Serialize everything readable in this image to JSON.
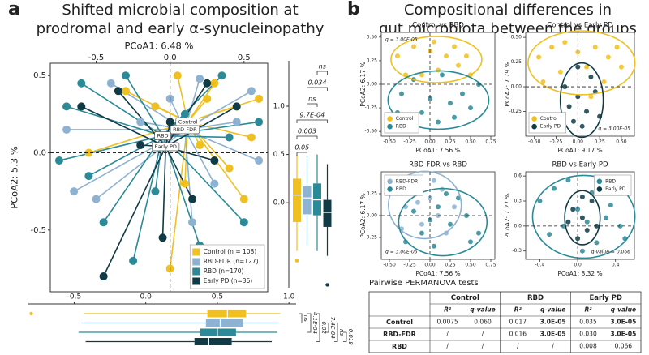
{
  "panels": [
    {
      "label": "a",
      "title": [
        "Shifted microbial composition at",
        "prodromal and early α-synucleinopathy"
      ]
    },
    {
      "label": "b",
      "title": [
        "Compositional differences in",
        "gut microbiota between the groups"
      ]
    }
  ],
  "chart_data": [
    {
      "type": "scatter",
      "spider": true,
      "xlabel": "PCoA1:  6.48 %",
      "ylabel": "PCoA2:  5.3 %",
      "xlim": [
        -0.81,
        0.66
      ],
      "ylim": [
        -0.9,
        0.58
      ],
      "xticks": [
        -0.5,
        {
          "value": 0,
          "label": "0.0"
        },
        0.5
      ],
      "yticks": [
        -0.5,
        {
          "value": 0,
          "label": "0.0"
        },
        0.5
      ],
      "legend": "lower right",
      "series": [
        {
          "name": "Control (n = 108)",
          "centroid_label": "Control",
          "centroid": [
            0.12,
            0.2
          ],
          "color": "#f0c020",
          "x": [
            0.05,
            0.3,
            0.45,
            0.55,
            -0.3,
            0.2,
            0.1,
            0.4,
            -0.1,
            0.6,
            -0.55,
            0.0,
            0.25,
            0.5
          ],
          "y": [
            0.5,
            0.45,
            0.3,
            0.1,
            0.4,
            0.05,
            -0.2,
            -0.1,
            0.3,
            0.35,
            0.0,
            -0.75,
            0.35,
            -0.3
          ]
        },
        {
          "name": "RBD-FDR (n=127)",
          "centroid_label": "RBD-FDR",
          "centroid": [
            0.1,
            0.15
          ],
          "color": "#8db2d2",
          "x": [
            -0.7,
            -0.4,
            0.2,
            0.45,
            -0.5,
            0.3,
            0.6,
            -0.2,
            0.15,
            -0.65,
            0.55,
            0.0
          ],
          "y": [
            0.15,
            0.45,
            0.48,
            0.2,
            -0.3,
            -0.2,
            -0.05,
            0.2,
            -0.45,
            -0.25,
            0.4,
            0.35
          ]
        },
        {
          "name": "RBD (n=170)",
          "centroid_label": "RBD",
          "centroid": [
            -0.05,
            0.11
          ],
          "color": "#2a8a98",
          "x": [
            -0.6,
            -0.3,
            -0.7,
            -0.45,
            -0.25,
            -0.55,
            0.35,
            0.2,
            0.5,
            -0.75,
            0.1,
            0.6,
            -0.1,
            0.4
          ],
          "y": [
            0.45,
            0.5,
            0.3,
            -0.45,
            -0.7,
            -0.15,
            0.5,
            -0.6,
            -0.45,
            -0.05,
            0.25,
            0.2,
            -0.25,
            0.1
          ]
        },
        {
          "name": "Early PD (n=36)",
          "centroid_label": "Early PD",
          "centroid": [
            -0.03,
            0.04
          ],
          "color": "#0e3b46",
          "x": [
            -0.45,
            -0.05,
            0.15,
            -0.35,
            0.25,
            0.45,
            -0.2,
            0.3,
            -0.6,
            0.0
          ],
          "y": [
            -0.8,
            -0.55,
            -0.3,
            0.4,
            0.45,
            0.3,
            0.05,
            -0.05,
            0.3,
            0.2
          ]
        }
      ]
    },
    {
      "type": "box",
      "orientation": "vertical",
      "ylim": [
        -0.88,
        1.47
      ],
      "yticks": [
        {
          "value": 0,
          "label": "0.0"
        },
        0.5,
        {
          "value": 1,
          "label": "1.0"
        }
      ],
      "series": [
        {
          "color": "#f0c020",
          "low": -0.5,
          "q1": -0.2,
          "median": 0.08,
          "q3": 0.25,
          "high": 0.5,
          "outliers": [
            -0.6
          ]
        },
        {
          "color": "#8db2d2",
          "low": -0.45,
          "q1": -0.12,
          "median": 0.05,
          "q3": 0.17,
          "high": 0.48,
          "outliers": []
        },
        {
          "color": "#2a8a98",
          "low": -0.5,
          "q1": -0.13,
          "median": 0.03,
          "q3": 0.2,
          "high": 0.5,
          "outliers": []
        },
        {
          "color": "#0e3b46",
          "low": -0.55,
          "q1": -0.25,
          "median": -0.1,
          "q3": 0.03,
          "high": 0.4,
          "outliers": [
            -0.85
          ]
        }
      ],
      "brackets": [
        "0.05",
        "0.003",
        "9.7E-04",
        "ns",
        "0.034",
        "ns"
      ]
    },
    {
      "type": "box",
      "orientation": "horizontal",
      "xlim": [
        -0.82,
        1.05
      ],
      "xticks": [
        -0.5,
        {
          "value": 0,
          "label": "0.0"
        },
        0.5,
        {
          "value": 1,
          "label": "1.0"
        }
      ],
      "series": [
        {
          "color": "#f0c020",
          "low": -0.43,
          "q1": 0.43,
          "median": 0.57,
          "q3": 0.7,
          "high": 0.94,
          "outliers": [
            -0.8
          ]
        },
        {
          "color": "#8db2d2",
          "low": -0.45,
          "q1": 0.42,
          "median": 0.52,
          "q3": 0.68,
          "high": 0.93,
          "outliers": []
        },
        {
          "color": "#2a8a98",
          "low": -0.47,
          "q1": 0.38,
          "median": 0.5,
          "q3": 0.63,
          "high": 0.92,
          "outliers": []
        },
        {
          "color": "#0e3b46",
          "low": -0.42,
          "q1": 0.34,
          "median": 0.44,
          "q3": 0.6,
          "high": 0.88,
          "outliers": []
        }
      ],
      "brackets": [
        "ns",
        "4.1E-04",
        "0.02",
        "7.4E-04",
        "ns",
        "0.018"
      ]
    },
    {
      "type": "scatter",
      "ellipse": true,
      "title": "Control vs RBD",
      "xlabel": "PCoA1:  7.56 %",
      "ylabel": "PCoA2:  6.17 %",
      "annotation": "q = 3.00E-05",
      "annotation_loc": "upper left",
      "legend": "lower left",
      "xlim": [
        -0.6,
        0.8
      ],
      "ylim": [
        -0.55,
        0.55
      ],
      "xticks": [
        {
          "value": -0.5,
          "label": "-0.50"
        },
        -0.25,
        {
          "value": 0,
          "label": "0.00"
        },
        0.25,
        {
          "value": 0.5,
          "label": "0.50"
        },
        0.75
      ],
      "yticks": [
        {
          "value": -0.5,
          "label": "-0.50"
        },
        -0.25,
        {
          "value": 0,
          "label": "0.00"
        },
        0.25,
        {
          "value": 0.5,
          "label": "0.50"
        }
      ],
      "series": [
        {
          "name": "Control",
          "color": "#f0c020",
          "x": [
            -0.4,
            -0.2,
            0.0,
            0.2,
            0.35,
            0.5,
            -0.1,
            0.1,
            0.3,
            -0.3,
            0.45,
            0.05
          ],
          "y": [
            0.3,
            0.4,
            0.35,
            0.3,
            0.2,
            0.1,
            0.1,
            0.15,
            0.4,
            0.1,
            0.3,
            0.45
          ]
        },
        {
          "name": "RBD",
          "color": "#2a8a98",
          "x": [
            -0.35,
            -0.1,
            0.1,
            0.25,
            0.4,
            0.6,
            -0.2,
            0.0,
            0.3,
            0.15,
            -0.4,
            0.5
          ],
          "y": [
            -0.1,
            -0.3,
            -0.4,
            -0.2,
            -0.1,
            0.0,
            0.05,
            -0.15,
            -0.35,
            0.1,
            -0.3,
            -0.25
          ]
        }
      ]
    },
    {
      "type": "scatter",
      "ellipse": true,
      "title": "Control vs Early PD",
      "xlabel": "PCoA1:  9.17 %",
      "ylabel": "PCoA2:  7.79 %",
      "annotation": "q = 3.00E-05",
      "annotation_loc": "lower right",
      "legend": "lower left",
      "xlim": [
        -0.6,
        0.65
      ],
      "ylim": [
        -0.5,
        0.55
      ],
      "xticks": [
        {
          "value": -0.5,
          "label": "-0.50"
        },
        -0.25,
        {
          "value": 0,
          "label": "0.00"
        },
        0.25,
        {
          "value": 0.5,
          "label": "0.50"
        }
      ],
      "yticks": [
        -0.25,
        {
          "value": 0,
          "label": "0.00"
        },
        0.25,
        {
          "value": 0.5,
          "label": "0.50"
        }
      ],
      "series": [
        {
          "name": "Control",
          "color": "#f0c020",
          "x": [
            -0.45,
            -0.3,
            -0.15,
            0.0,
            0.2,
            0.35,
            0.5,
            -0.2,
            0.1,
            0.3,
            -0.4,
            0.45,
            0.15
          ],
          "y": [
            0.3,
            0.4,
            0.45,
            0.35,
            0.4,
            0.3,
            0.2,
            0.15,
            0.2,
            0.05,
            0.05,
            0.4,
            -0.1
          ]
        },
        {
          "name": "Early PD",
          "color": "#0e3b46",
          "x": [
            -0.15,
            0.0,
            0.1,
            0.05,
            -0.1,
            0.2,
            0.15,
            -0.05,
            0.25,
            0.0
          ],
          "y": [
            0.0,
            -0.1,
            -0.25,
            -0.4,
            -0.2,
            -0.05,
            0.1,
            -0.35,
            -0.3,
            0.2
          ]
        }
      ]
    },
    {
      "type": "scatter",
      "ellipse": true,
      "title": "RBD-FDR vs RBD",
      "xlabel": "PCoA1:  7.56 %",
      "ylabel": "PCoA2:  6.17 %",
      "annotation": "q = 3.00E-05",
      "annotation_loc": "lower left",
      "legend": "upper left",
      "xlim": [
        -0.6,
        0.8
      ],
      "ylim": [
        -0.5,
        0.5
      ],
      "xticks": [
        {
          "value": -0.5,
          "label": "-0.50"
        },
        -0.25,
        {
          "value": 0,
          "label": "0.00"
        },
        0.25,
        {
          "value": 0.5,
          "label": "0.50"
        },
        0.75
      ],
      "yticks": [
        -0.25,
        {
          "value": 0,
          "label": "0.00"
        },
        0.25
      ],
      "series": [
        {
          "name": "RBD-FDR",
          "color": "#8db2d2",
          "x": [
            -0.45,
            -0.3,
            -0.2,
            0.0,
            0.15,
            0.3,
            -0.1,
            0.1,
            -0.35,
            0.2,
            0.05,
            -0.15
          ],
          "y": [
            0.3,
            0.1,
            0.35,
            0.2,
            0.3,
            0.1,
            -0.1,
            0.0,
            -0.15,
            -0.2,
            0.4,
            0.15
          ]
        },
        {
          "name": "RBD",
          "color": "#2a8a98",
          "x": [
            -0.3,
            -0.1,
            0.05,
            0.25,
            0.45,
            0.6,
            0.2,
            0.35,
            -0.2,
            0.1,
            0.5,
            0.0
          ],
          "y": [
            -0.3,
            -0.2,
            -0.35,
            -0.1,
            0.0,
            -0.2,
            0.25,
            0.2,
            0.05,
            0.1,
            -0.3,
            -0.05
          ]
        }
      ]
    },
    {
      "type": "scatter",
      "ellipse": true,
      "title": "RBD vs Early PD",
      "xlabel": "PCoA1:  8.32 %",
      "ylabel": "PCoA2:  7.27 %",
      "annotation": "q-value = 0.066",
      "annotation_loc": "lower right",
      "legend": "upper right",
      "xlim": [
        -0.55,
        0.6
      ],
      "ylim": [
        -0.4,
        0.65
      ],
      "xticks": [
        -0.4,
        {
          "value": 0,
          "label": "0.0"
        },
        0.4
      ],
      "yticks": [
        -0.3,
        {
          "value": 0,
          "label": "0.0"
        },
        0.3,
        0.6
      ],
      "series": [
        {
          "name": "RBD",
          "color": "#2a8a98",
          "x": [
            -0.4,
            -0.25,
            -0.1,
            0.0,
            0.15,
            0.3,
            0.45,
            -0.3,
            0.2,
            0.05,
            0.35,
            -0.15,
            0.1,
            0.5
          ],
          "y": [
            0.3,
            0.45,
            0.55,
            0.2,
            0.4,
            0.1,
            0.0,
            -0.1,
            -0.2,
            -0.3,
            0.25,
            0.0,
            0.05,
            -0.15
          ]
        },
        {
          "name": "Early PD",
          "color": "#0e3b46",
          "x": [
            -0.05,
            0.05,
            0.1,
            0.0,
            0.15,
            -0.1,
            0.2,
            0.05
          ],
          "y": [
            0.2,
            0.1,
            -0.05,
            -0.15,
            0.3,
            0.05,
            0.0,
            0.35
          ]
        }
      ]
    }
  ],
  "table": {
    "title": "Pairwise PERMANOVA tests",
    "groups": [
      "Control",
      "RBD",
      "Early PD"
    ],
    "subheaders": [
      "R²",
      "q-value",
      "R²",
      "q-value",
      "R²",
      "q-value"
    ],
    "rows": [
      {
        "label": "Control",
        "cells": [
          "0.0075",
          "0.060",
          "0.017",
          "3.0E-05",
          "0.035",
          "3.0E-05"
        ],
        "bold": [
          false,
          false,
          false,
          true,
          false,
          true
        ]
      },
      {
        "label": "RBD-FDR",
        "cells": [
          "/",
          "/",
          "0.016",
          "3.0E-05",
          "0.030",
          "3.0E-05"
        ],
        "bold": [
          false,
          false,
          false,
          true,
          false,
          true
        ]
      },
      {
        "label": "RBD",
        "cells": [
          "/",
          "/",
          "/",
          "/",
          "0.008",
          "0.066"
        ],
        "bold": [
          false,
          false,
          false,
          false,
          false,
          false
        ]
      }
    ]
  }
}
